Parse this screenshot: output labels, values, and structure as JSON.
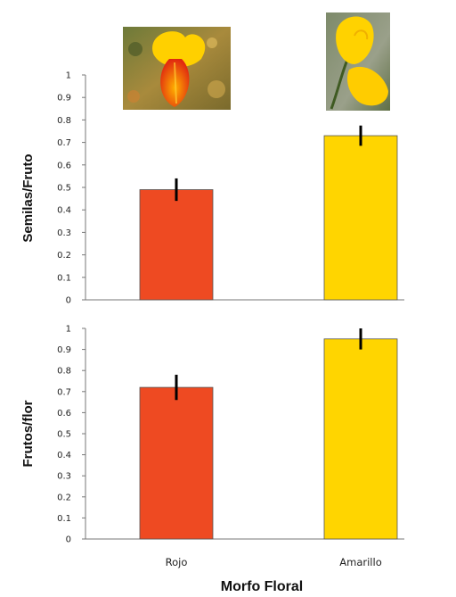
{
  "chart_data": [
    {
      "type": "bar",
      "ylabel": "Semilas/Fruto",
      "categories": [
        "Rojo",
        "Amarillo"
      ],
      "values": [
        0.49,
        0.73
      ],
      "errors": [
        0.05,
        0.045
      ],
      "colors": [
        "#ee4a22",
        "#ffd500"
      ],
      "ylim": [
        0,
        1
      ],
      "yticks": [
        "0",
        "0.1",
        "0.2",
        "0.3",
        "0.4",
        "0.5",
        "0.6",
        "0.7",
        "0.8",
        "0.9",
        "1"
      ],
      "grid": false,
      "images": [
        "red-flower-photo",
        "yellow-flower-photo"
      ]
    },
    {
      "type": "bar",
      "ylabel": "Frutos/flor",
      "xlabel": "Morfo Floral",
      "categories": [
        "Rojo",
        "Amarillo"
      ],
      "values": [
        0.72,
        0.95
      ],
      "errors": [
        0.06,
        0.05
      ],
      "colors": [
        "#ee4a22",
        "#ffd500"
      ],
      "ylim": [
        0,
        1
      ],
      "yticks": [
        "0",
        "0.1",
        "0.2",
        "0.3",
        "0.4",
        "0.5",
        "0.6",
        "0.7",
        "0.8",
        "0.9",
        "1"
      ],
      "grid": false
    }
  ]
}
